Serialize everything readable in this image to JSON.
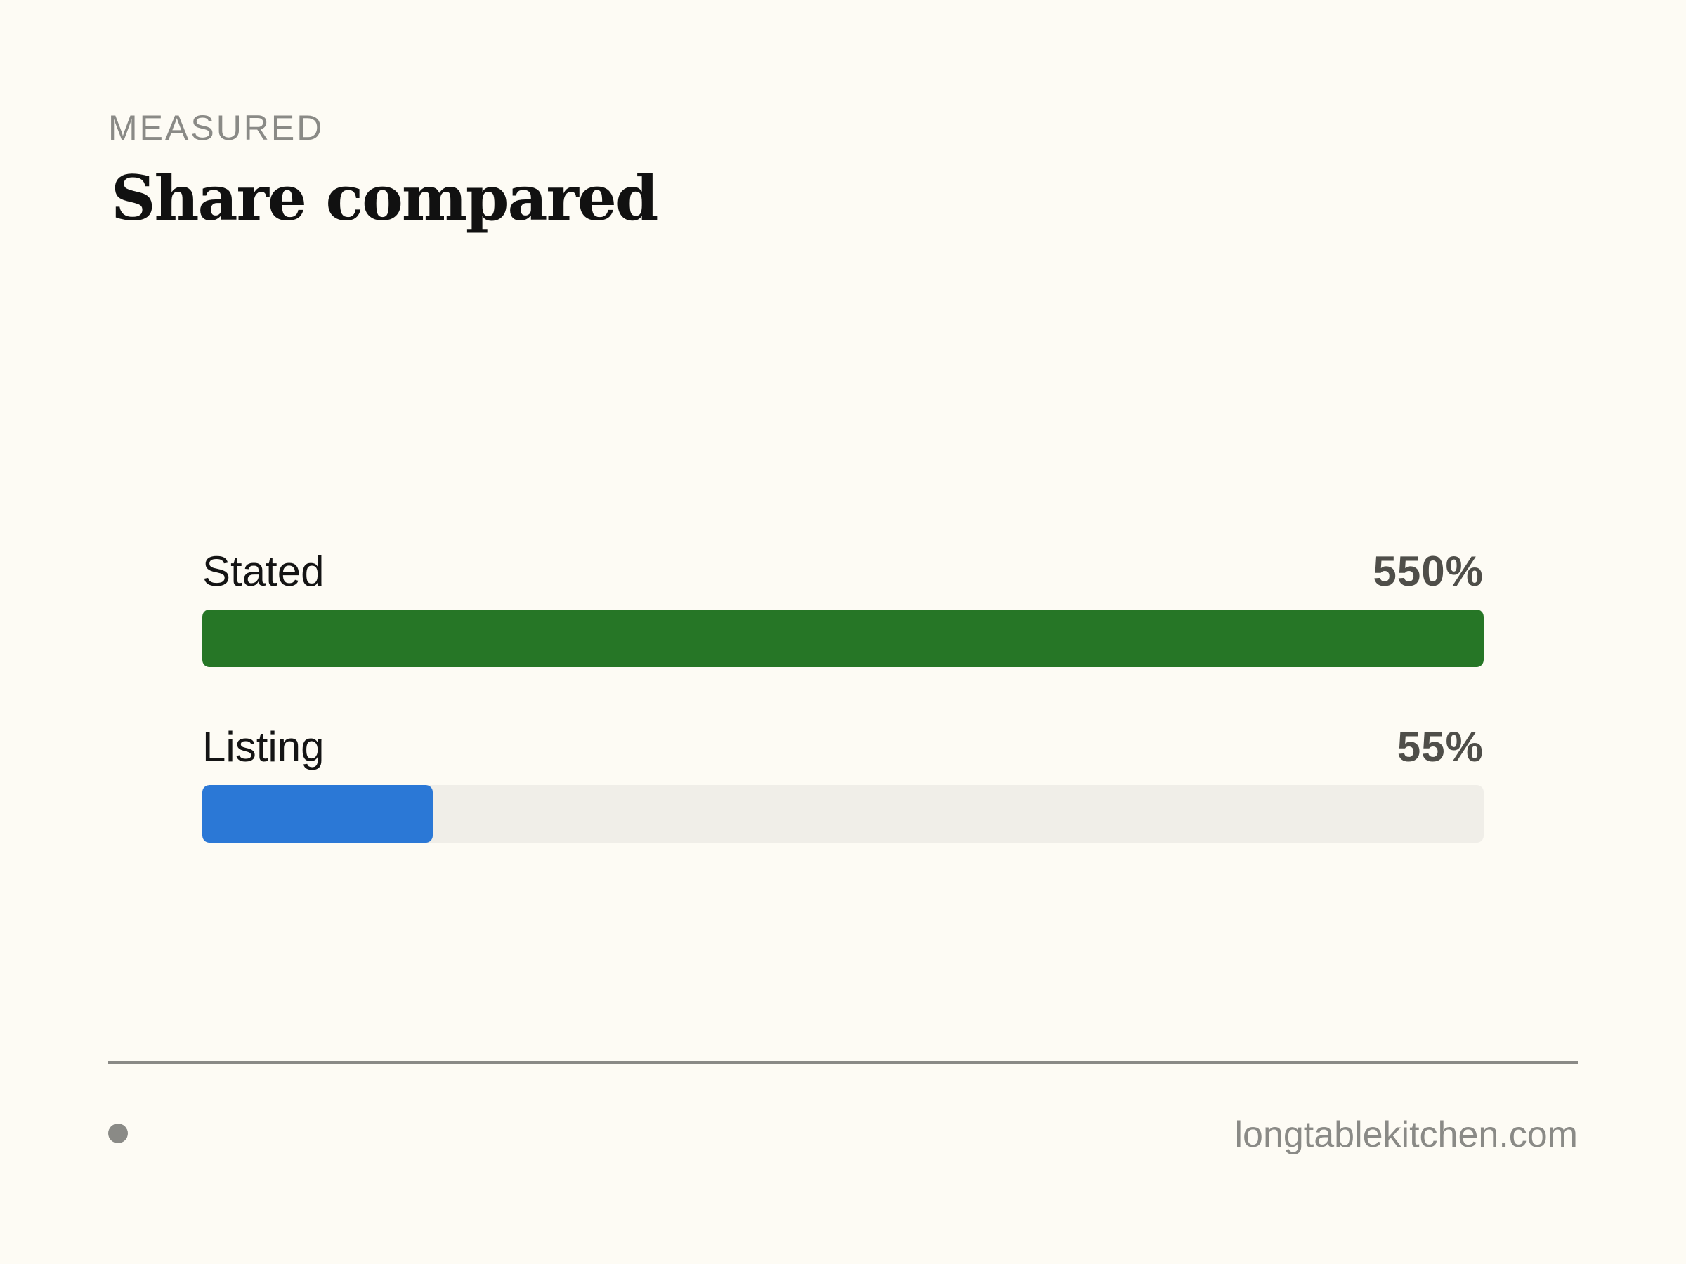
{
  "header": {
    "eyebrow": "MEASURED",
    "title": "Share compared"
  },
  "chart_data": {
    "type": "bar",
    "orientation": "horizontal",
    "title": "Share compared",
    "categories": [
      "Stated",
      "Listing"
    ],
    "values": [
      550,
      55
    ],
    "value_labels": [
      "550%",
      "55%"
    ],
    "unit": "%",
    "xlim": [
      0,
      550
    ],
    "grid": false,
    "legend": "none",
    "colors": [
      "#267626",
      "#2b78d6"
    ],
    "track_color": "#f0eee8"
  },
  "footer": {
    "site": "longtablekitchen.com",
    "dot_icon": "bullet-dot-icon"
  }
}
